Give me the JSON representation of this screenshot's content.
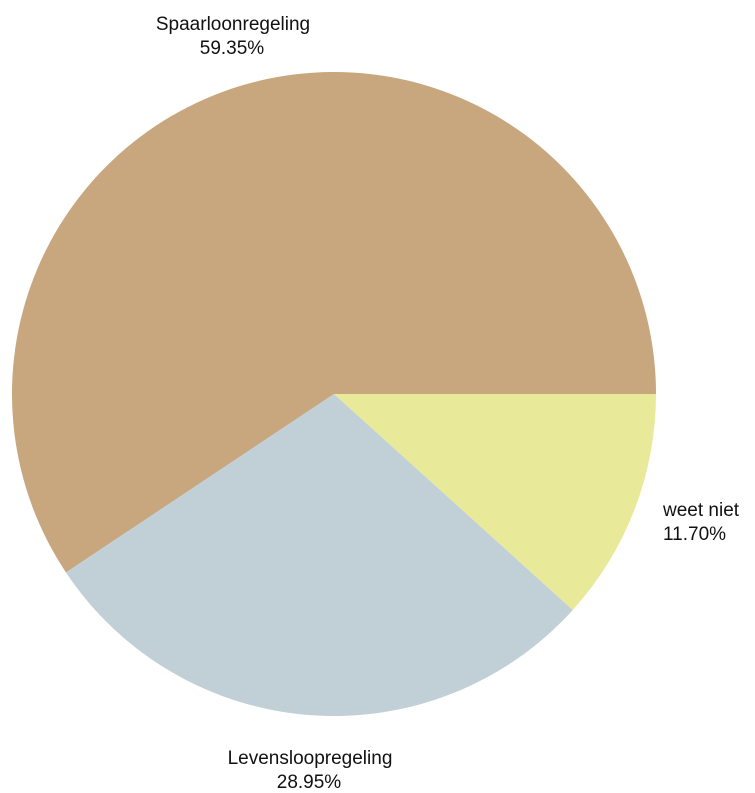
{
  "chart_data": {
    "type": "pie",
    "title": "",
    "slices": [
      {
        "label": "Spaarloonregeling",
        "value": 59.35,
        "value_label": "59.35%",
        "color": "#c8a67e"
      },
      {
        "label": "Levensloopregeling",
        "value": 28.95,
        "value_label": "28.95%",
        "color": "#c0d0d6"
      },
      {
        "label": "weet niet",
        "value": 11.7,
        "value_label": "11.70%",
        "color": "#e8ea9a"
      }
    ],
    "legend": "none",
    "labels_outside": true
  }
}
